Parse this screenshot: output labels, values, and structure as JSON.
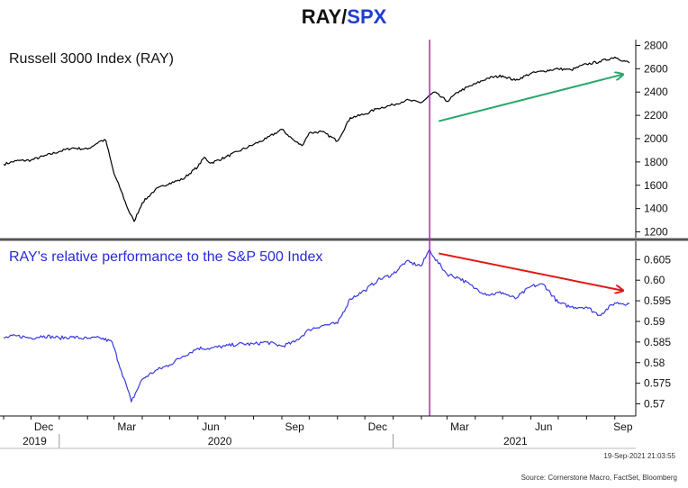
{
  "title": {
    "left": "RAY",
    "slash": "/",
    "right": "SPX"
  },
  "colors": {
    "title_dark": "#111111",
    "title_accent": "#1f3fd0",
    "ray_line": "#000000",
    "relative_line": "#3a3ae0",
    "green_arrow": "#2aa86a",
    "red_arrow": "#e01818",
    "event_line": "#9b30c0",
    "divider": "#555555"
  },
  "footer": {
    "timestamp": "19-Sep-2021 21:03:55",
    "source": "Source: Cornerstone Macro, FactSet, Bloomberg"
  },
  "chart_data": [
    {
      "type": "line",
      "title": "Russell 3000 Index (RAY)",
      "ylim": [
        1150,
        2850
      ],
      "yticks": [
        1200,
        1400,
        1600,
        1800,
        2000,
        2200,
        2400,
        2600,
        2800
      ],
      "x": [
        "2019-11-01",
        "2019-11-15",
        "2019-12-01",
        "2019-12-15",
        "2020-01-01",
        "2020-01-15",
        "2020-02-01",
        "2020-02-15",
        "2020-02-21",
        "2020-03-01",
        "2020-03-09",
        "2020-03-16",
        "2020-03-23",
        "2020-04-01",
        "2020-04-15",
        "2020-05-01",
        "2020-05-15",
        "2020-06-01",
        "2020-06-08",
        "2020-06-15",
        "2020-07-01",
        "2020-07-15",
        "2020-08-01",
        "2020-08-15",
        "2020-09-01",
        "2020-09-15",
        "2020-09-23",
        "2020-10-01",
        "2020-10-15",
        "2020-11-01",
        "2020-11-15",
        "2020-12-01",
        "2020-12-15",
        "2021-01-01",
        "2021-01-15",
        "2021-02-01",
        "2021-02-15",
        "2021-03-01",
        "2021-03-15",
        "2021-04-01",
        "2021-04-15",
        "2021-05-01",
        "2021-05-15",
        "2021-06-01",
        "2021-06-15",
        "2021-07-01",
        "2021-07-15",
        "2021-08-01",
        "2021-08-15",
        "2021-09-01",
        "2021-09-17"
      ],
      "values": [
        1780,
        1810,
        1815,
        1850,
        1890,
        1920,
        1910,
        1980,
        1985,
        1700,
        1550,
        1400,
        1290,
        1450,
        1560,
        1620,
        1650,
        1760,
        1840,
        1790,
        1840,
        1890,
        1950,
        2000,
        2080,
        1980,
        1940,
        2050,
        2060,
        1980,
        2180,
        2210,
        2260,
        2290,
        2330,
        2310,
        2400,
        2320,
        2410,
        2470,
        2520,
        2540,
        2500,
        2560,
        2580,
        2600,
        2590,
        2640,
        2660,
        2700,
        2650
      ],
      "series_name": "RAY"
    },
    {
      "type": "line",
      "title": "RAY's relative performance to the S&P 500 Index",
      "ylim": [
        0.5675,
        0.609
      ],
      "yticks": [
        0.57,
        0.575,
        0.58,
        0.585,
        0.59,
        0.595,
        0.6,
        0.605
      ],
      "ytick_labels": [
        "0.57",
        "0.575",
        "0.58",
        "0.585",
        "0.59",
        "0.595",
        "0.60",
        "0.605"
      ],
      "x": [
        "2019-11-01",
        "2019-11-15",
        "2019-12-01",
        "2019-12-15",
        "2020-01-01",
        "2020-01-15",
        "2020-02-01",
        "2020-02-15",
        "2020-02-28",
        "2020-03-09",
        "2020-03-16",
        "2020-03-20",
        "2020-04-01",
        "2020-04-15",
        "2020-05-01",
        "2020-05-15",
        "2020-06-01",
        "2020-06-15",
        "2020-07-01",
        "2020-07-15",
        "2020-08-01",
        "2020-08-15",
        "2020-09-01",
        "2020-09-15",
        "2020-10-01",
        "2020-10-15",
        "2020-11-01",
        "2020-11-15",
        "2020-12-01",
        "2020-12-15",
        "2021-01-01",
        "2021-01-15",
        "2021-02-01",
        "2021-02-10",
        "2021-02-15",
        "2021-03-01",
        "2021-03-15",
        "2021-04-01",
        "2021-04-15",
        "2021-05-01",
        "2021-05-15",
        "2021-06-01",
        "2021-06-15",
        "2021-07-01",
        "2021-07-15",
        "2021-08-01",
        "2021-08-15",
        "2021-09-01",
        "2021-09-17"
      ],
      "values": [
        0.586,
        0.5865,
        0.586,
        0.5865,
        0.586,
        0.5862,
        0.5858,
        0.586,
        0.585,
        0.578,
        0.5735,
        0.5705,
        0.576,
        0.578,
        0.5795,
        0.5815,
        0.5835,
        0.5835,
        0.584,
        0.5845,
        0.5845,
        0.585,
        0.584,
        0.585,
        0.588,
        0.589,
        0.5895,
        0.5955,
        0.5975,
        0.6,
        0.6015,
        0.6045,
        0.6035,
        0.6075,
        0.6055,
        0.6015,
        0.6005,
        0.598,
        0.5965,
        0.597,
        0.5955,
        0.5985,
        0.599,
        0.5945,
        0.5935,
        0.5935,
        0.5915,
        0.5945,
        0.5943
      ],
      "series_name": "RAY/SPX"
    }
  ],
  "x_axis": {
    "range": [
      "2019-11-01",
      "2021-09-22"
    ],
    "month_ticks": [
      {
        "label": "Dec",
        "date": "2019-12-15"
      },
      {
        "label": "Mar",
        "date": "2020-03-15"
      },
      {
        "label": "Jun",
        "date": "2020-06-15"
      },
      {
        "label": "Sep",
        "date": "2020-09-15"
      },
      {
        "label": "Dec",
        "date": "2020-12-15"
      },
      {
        "label": "Mar",
        "date": "2021-03-15"
      },
      {
        "label": "Jun",
        "date": "2021-06-15"
      },
      {
        "label": "Sep",
        "date": "2021-09-10"
      }
    ],
    "years": [
      {
        "label": "2019",
        "date": "2019-12-05"
      },
      {
        "label": "2020",
        "date": "2020-06-25"
      },
      {
        "label": "2021",
        "date": "2021-05-15"
      }
    ],
    "year_boundaries": [
      "2020-01-01",
      "2021-01-01"
    ]
  },
  "annotations": {
    "event_line_date": "2021-02-10",
    "green_arrow": {
      "from": {
        "date": "2021-02-20",
        "value": 2150
      },
      "to": {
        "date": "2021-09-17",
        "value": 2550
      }
    },
    "red_arrow": {
      "from": {
        "date": "2021-02-20",
        "value": 0.6065
      },
      "to": {
        "date": "2021-09-17",
        "value": 0.5975
      }
    }
  }
}
